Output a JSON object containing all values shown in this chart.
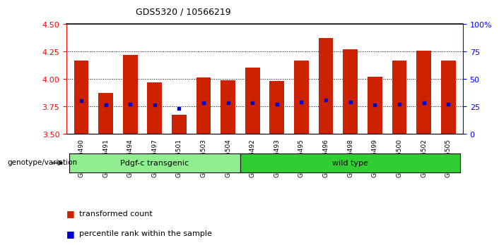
{
  "title": "GDS5320 / 10566219",
  "samples": [
    "GSM936490",
    "GSM936491",
    "GSM936494",
    "GSM936497",
    "GSM936501",
    "GSM936503",
    "GSM936504",
    "GSM936492",
    "GSM936493",
    "GSM936495",
    "GSM936496",
    "GSM936498",
    "GSM936499",
    "GSM936500",
    "GSM936502",
    "GSM936505"
  ],
  "transformed_count": [
    4.17,
    3.87,
    4.22,
    3.97,
    3.67,
    4.01,
    3.99,
    4.1,
    3.98,
    4.17,
    4.37,
    4.27,
    4.02,
    4.17,
    4.26,
    4.17
  ],
  "percentile_rank": [
    30,
    26,
    27,
    26,
    23,
    28,
    28,
    28,
    27,
    29,
    31,
    29,
    26,
    27,
    28,
    27
  ],
  "bar_bottom": 3.5,
  "ylim_left": [
    3.5,
    4.5
  ],
  "ylim_right": [
    0,
    100
  ],
  "groups": [
    {
      "label": "Pdgf-c transgenic",
      "start": 0,
      "end": 7,
      "color": "#90ee90"
    },
    {
      "label": "wild type",
      "start": 7,
      "end": 16,
      "color": "#32cd32"
    }
  ],
  "bar_color": "#cc2200",
  "dot_color": "#0000cc",
  "yticks_left": [
    3.5,
    3.75,
    4.0,
    4.25,
    4.5
  ],
  "yticks_right": [
    0,
    25,
    50,
    75,
    100
  ],
  "group_label_y": "genotype/variation",
  "legend_items": [
    {
      "color": "#cc2200",
      "label": "transformed count"
    },
    {
      "color": "#0000cc",
      "label": "percentile rank within the sample"
    }
  ]
}
